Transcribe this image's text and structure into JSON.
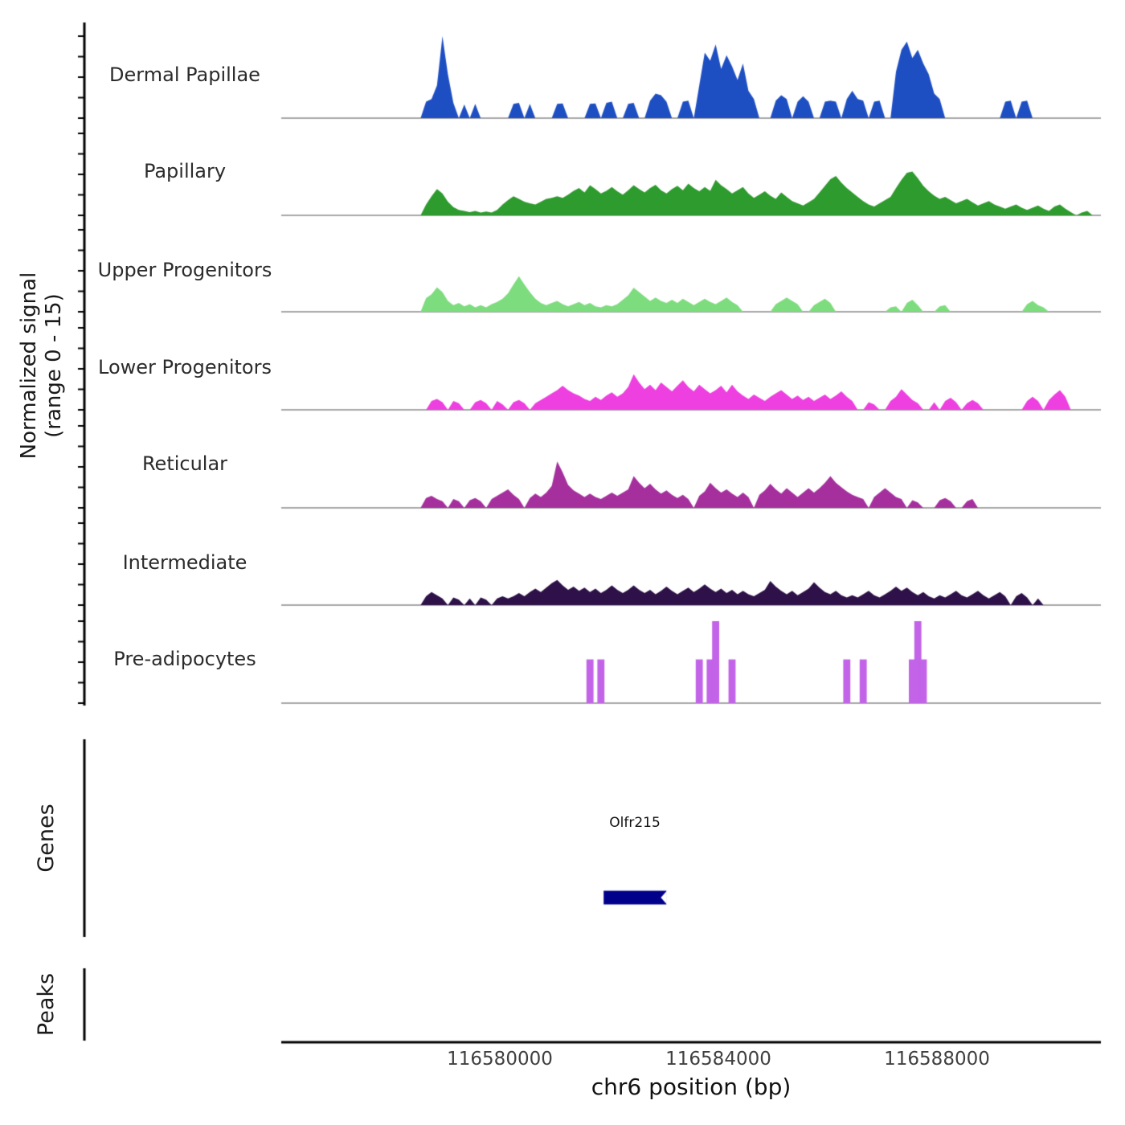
{
  "axes": {
    "y_label_line1": "Normalized signal",
    "y_label_line2": "(range 0 - 15)",
    "x_label": "chr6 position (bp)",
    "genes_section_label": "Genes",
    "peaks_section_label": "Peaks"
  },
  "chart_data": {
    "type": "area",
    "title": "",
    "ylim": [
      0,
      15
    ],
    "start_bp": 116576000,
    "bin_size_bp": 100,
    "x_axis": {
      "label": "chr6 position (bp)",
      "start_bp": 116576000,
      "end_bp": 116591000,
      "ticks": [
        116580000,
        116584000,
        116588000
      ],
      "tick_labels": [
        "116580000",
        "116584000",
        "116588000"
      ]
    },
    "baseline_color": "#8c8c8c",
    "axis_color": "#000000",
    "tracks": [
      {
        "name": "Dermal Papillae",
        "color": "#1e4fc2",
        "style": "area",
        "values": [
          0,
          0,
          0,
          0,
          0,
          0,
          0,
          0,
          0,
          0,
          0,
          0,
          0,
          0,
          0,
          0,
          0,
          0,
          0,
          0,
          0,
          0,
          0,
          0,
          0,
          0,
          3,
          3.5,
          6,
          15,
          8,
          2.8,
          0,
          2.5,
          0,
          2.6,
          0,
          0,
          0,
          0,
          0,
          0,
          2.6,
          2.8,
          0,
          2.6,
          0,
          0,
          0,
          0,
          2.6,
          2.7,
          0,
          0,
          0,
          0,
          2.6,
          2.7,
          0,
          2.8,
          3,
          0,
          0,
          2.6,
          2.8,
          0,
          0,
          3.2,
          4.5,
          4.2,
          3,
          0,
          0,
          3,
          3.2,
          0,
          6,
          12,
          10.5,
          13.5,
          9,
          11.5,
          9.5,
          7,
          10,
          5,
          3.5,
          0,
          0,
          0,
          3.2,
          4.2,
          3.5,
          0,
          3,
          4,
          3,
          0,
          0,
          3,
          3.2,
          3,
          0,
          3.5,
          5,
          3.5,
          3.2,
          0,
          3,
          3.2,
          0,
          0,
          8.5,
          12.5,
          14,
          11,
          12.5,
          10,
          8,
          4.5,
          3.5,
          0,
          0,
          0,
          0,
          0,
          0,
          0,
          0,
          0,
          0,
          0,
          3,
          3.2,
          0,
          3,
          3.2,
          0,
          0,
          0,
          0,
          0,
          0,
          0,
          0,
          0,
          0,
          0,
          0,
          0
        ]
      },
      {
        "name": "Papillary",
        "color": "#2e9b2e",
        "style": "area",
        "values": [
          0,
          0,
          0,
          0,
          0,
          0,
          0,
          0,
          0,
          0,
          0,
          0,
          0,
          0,
          0,
          0,
          0,
          0,
          0,
          0,
          0,
          0,
          0,
          0,
          0,
          0,
          2,
          3.5,
          4.8,
          4,
          2.5,
          1.5,
          1,
          0.8,
          0.6,
          0.8,
          0.5,
          0.7,
          0.5,
          1,
          2,
          2.8,
          3.5,
          3,
          2.5,
          2.2,
          2,
          2.5,
          3,
          3.2,
          3.5,
          3.2,
          3.8,
          4.5,
          5,
          4.2,
          5.5,
          4.8,
          4,
          4.5,
          5.2,
          4.4,
          3.8,
          4.6,
          5.5,
          4.8,
          4.2,
          5,
          5.6,
          4.6,
          4,
          4.8,
          5.4,
          4.6,
          5.8,
          5,
          4.4,
          5.2,
          4.5,
          6.5,
          5.5,
          4.8,
          4,
          4.6,
          5.2,
          4,
          3.2,
          3.8,
          4.4,
          3.6,
          3,
          4.2,
          3.4,
          2.6,
          2.2,
          1.8,
          2.4,
          3,
          4.2,
          5.4,
          6.6,
          7.2,
          6,
          5,
          4.2,
          3.4,
          2.6,
          2,
          1.6,
          2.2,
          2.8,
          3.4,
          5,
          6.5,
          7.8,
          8,
          6.8,
          5.4,
          4.4,
          3.6,
          3,
          3.4,
          2.8,
          2.2,
          2.6,
          3,
          2.4,
          1.8,
          2.2,
          2.6,
          2,
          1.6,
          1.2,
          1.6,
          2,
          1.4,
          1,
          1.4,
          1.8,
          1.2,
          0.8,
          1.6,
          2,
          1.2,
          0.6,
          0,
          0.5,
          0.8,
          0,
          0
        ]
      },
      {
        "name": "Upper Progenitors",
        "color": "#7ddc7d",
        "style": "area",
        "values": [
          0,
          0,
          0,
          0,
          0,
          0,
          0,
          0,
          0,
          0,
          0,
          0,
          0,
          0,
          0,
          0,
          0,
          0,
          0,
          0,
          0,
          0,
          0,
          0,
          0,
          0,
          2.5,
          3.2,
          4.5,
          3.6,
          2,
          1.2,
          1.6,
          1,
          1.4,
          0.8,
          1.2,
          0.8,
          1.4,
          1.8,
          2.4,
          3.4,
          5,
          6.5,
          5,
          3.6,
          2.4,
          1.6,
          1.2,
          1.6,
          2,
          1.4,
          1,
          1.4,
          1.8,
          1.2,
          1.6,
          1,
          0.8,
          1.2,
          1,
          1.4,
          2.2,
          3,
          4.4,
          3.6,
          2.8,
          2,
          2.6,
          2,
          1.6,
          2.2,
          1.6,
          2.4,
          1.8,
          1.2,
          1.8,
          2.4,
          1.8,
          1.4,
          2,
          2.6,
          1.8,
          1.2,
          0,
          0,
          0,
          0,
          0,
          0,
          1.4,
          2,
          2.6,
          2,
          1.4,
          0,
          0,
          1.2,
          1.8,
          2.4,
          1.6,
          0,
          0,
          0,
          0,
          0,
          0,
          0,
          0,
          0,
          0,
          0.8,
          1,
          0,
          1.6,
          2.2,
          1.2,
          0,
          0,
          0,
          1,
          1.2,
          0,
          0,
          0,
          0,
          0,
          0,
          0,
          0,
          0,
          0,
          0,
          0,
          0,
          0,
          1.4,
          2,
          1.2,
          0.8,
          0,
          0,
          0,
          0,
          0,
          0,
          0,
          0,
          0,
          0
        ]
      },
      {
        "name": "Lower Progenitors",
        "color": "#ee3fe0",
        "style": "area",
        "values": [
          0,
          0,
          0,
          0,
          0,
          0,
          0,
          0,
          0,
          0,
          0,
          0,
          0,
          0,
          0,
          0,
          0,
          0,
          0,
          0,
          0,
          0,
          0,
          0,
          0,
          0,
          0,
          1.6,
          2,
          1.4,
          0,
          1.6,
          1.2,
          0,
          0,
          1.4,
          1.8,
          1.2,
          0,
          1.6,
          1,
          0,
          1.4,
          1.8,
          1.2,
          0,
          1.2,
          1.8,
          2.4,
          3,
          3.6,
          4.4,
          3.6,
          3,
          2.6,
          2,
          1.6,
          2.4,
          1.8,
          2.6,
          3.2,
          2.4,
          3,
          4.2,
          6.5,
          5,
          3.8,
          4.6,
          3.6,
          5,
          4.2,
          3.4,
          4.4,
          5.4,
          4.2,
          3.4,
          4.6,
          3.8,
          3,
          3.6,
          4.4,
          3.2,
          4.6,
          3.4,
          2.6,
          2,
          2.8,
          2.2,
          1.6,
          2.4,
          3,
          3.6,
          2.8,
          2,
          2.6,
          1.8,
          2.4,
          1.6,
          2.2,
          2.8,
          2,
          2.6,
          3.4,
          2.4,
          1.6,
          0,
          0,
          1.4,
          1,
          0,
          0,
          1.6,
          2.4,
          3.8,
          2.8,
          1.8,
          1.2,
          0,
          0,
          1.4,
          0,
          1.6,
          2.2,
          1.4,
          0,
          1.2,
          1.8,
          1.2,
          0,
          0,
          0,
          0,
          0,
          0,
          0,
          0,
          1.6,
          2.4,
          1.6,
          0,
          1.8,
          2.8,
          3.6,
          2.4,
          0,
          0,
          0,
          0,
          0,
          0
        ]
      },
      {
        "name": "Reticular",
        "color": "#a62f9e",
        "style": "area",
        "values": [
          0,
          0,
          0,
          0,
          0,
          0,
          0,
          0,
          0,
          0,
          0,
          0,
          0,
          0,
          0,
          0,
          0,
          0,
          0,
          0,
          0,
          0,
          0,
          0,
          0,
          0,
          1.8,
          2.2,
          1.6,
          1.2,
          0,
          1.6,
          1.2,
          0,
          1.4,
          1.8,
          1.2,
          0,
          1.6,
          2.2,
          2.8,
          3.4,
          2.4,
          1.6,
          0,
          1.8,
          2.6,
          2,
          2.8,
          4,
          8.5,
          6.5,
          4.2,
          3.2,
          2.6,
          2,
          2.6,
          2,
          1.6,
          2.2,
          2.8,
          2.2,
          2.8,
          3.4,
          5.8,
          4.6,
          3.6,
          4.4,
          3.4,
          2.6,
          3.2,
          2.4,
          1.8,
          2.4,
          1.6,
          0,
          2.2,
          3,
          4.6,
          3.6,
          2.8,
          3.4,
          2.6,
          2,
          2.8,
          2,
          0,
          2.4,
          3.2,
          4.4,
          3.4,
          2.6,
          3.6,
          2.8,
          2,
          2.8,
          3.6,
          2.8,
          3.6,
          4.6,
          5.8,
          4.6,
          3.8,
          3,
          2.4,
          2,
          1.6,
          0,
          2,
          2.8,
          3.6,
          2.8,
          2,
          1.6,
          0,
          1.4,
          1,
          0,
          0,
          0,
          1.4,
          1.8,
          1.2,
          0,
          0,
          1.2,
          1.6,
          0,
          0,
          0,
          0,
          0,
          0,
          0,
          0,
          0,
          0,
          0,
          0,
          0,
          0,
          0,
          0,
          0,
          0,
          0,
          0,
          0,
          0,
          0
        ]
      },
      {
        "name": "Intermediate",
        "color": "#2e1148",
        "style": "area",
        "values": [
          0,
          0,
          0,
          0,
          0,
          0,
          0,
          0,
          0,
          0,
          0,
          0,
          0,
          0,
          0,
          0,
          0,
          0,
          0,
          0,
          0,
          0,
          0,
          0,
          0,
          0,
          1.6,
          2.4,
          1.8,
          1.2,
          0,
          1.4,
          1,
          0,
          1.2,
          0,
          1.4,
          1,
          0,
          1.2,
          1.6,
          1.2,
          1.6,
          2.2,
          1.6,
          2.4,
          3,
          2.4,
          3.2,
          4,
          4.6,
          3.6,
          2.8,
          3.4,
          2.6,
          3.2,
          2.4,
          3,
          2.2,
          2.8,
          3.6,
          2.8,
          2.2,
          2.8,
          3.6,
          2.8,
          2.2,
          2.8,
          2,
          2.6,
          3.4,
          2.6,
          2,
          2.6,
          3.2,
          2.4,
          3,
          3.8,
          3,
          2.4,
          3,
          2.2,
          2.8,
          2,
          2.6,
          2,
          1.6,
          2.2,
          2.8,
          4.4,
          3.4,
          2.6,
          2,
          2.6,
          1.8,
          2.4,
          3,
          4.2,
          3.2,
          2.4,
          2,
          2.6,
          1.8,
          1.4,
          1.8,
          1.4,
          2,
          2.6,
          1.8,
          1.4,
          2,
          2.6,
          3.4,
          2.6,
          3.2,
          2.4,
          1.8,
          2.4,
          1.6,
          1.2,
          1.8,
          1.4,
          2,
          2.6,
          1.8,
          1.4,
          2,
          2.6,
          1.8,
          1.2,
          1.8,
          2.4,
          1.6,
          0,
          1.6,
          2.2,
          1.4,
          0,
          1.2,
          0,
          0,
          0,
          0,
          0,
          0,
          0,
          0,
          0,
          0,
          0
        ]
      },
      {
        "name": "Pre-adipocytes",
        "color": "#c263e8",
        "style": "bars",
        "values": [
          0,
          0,
          0,
          0,
          0,
          0,
          0,
          0,
          0,
          0,
          0,
          0,
          0,
          0,
          0,
          0,
          0,
          0,
          0,
          0,
          0,
          0,
          0,
          0,
          0,
          0,
          0,
          0,
          0,
          0,
          0,
          0,
          0,
          0,
          0,
          0,
          0,
          0,
          0,
          0,
          0,
          0,
          0,
          0,
          0,
          0,
          0,
          0,
          0,
          0,
          0,
          0,
          0,
          0,
          0,
          0,
          8,
          0,
          8,
          0,
          0,
          0,
          0,
          0,
          0,
          0,
          0,
          0,
          0,
          0,
          0,
          0,
          0,
          0,
          0,
          0,
          8,
          0,
          8,
          15,
          0,
          0,
          8,
          0,
          0,
          0,
          0,
          0,
          0,
          0,
          0,
          0,
          0,
          0,
          0,
          0,
          0,
          0,
          0,
          0,
          0,
          0,
          0,
          8,
          0,
          0,
          8,
          0,
          0,
          0,
          0,
          0,
          0,
          0,
          0,
          8,
          15,
          8,
          0,
          0,
          0,
          0,
          0,
          0,
          0,
          0,
          0,
          0,
          0,
          0,
          0,
          0,
          0,
          0,
          0,
          0,
          0,
          0,
          0,
          0,
          0,
          0,
          0,
          0,
          0,
          0,
          0,
          0,
          0,
          0
        ]
      }
    ],
    "gene_track": {
      "label": "Genes",
      "genes": [
        {
          "name": "Olfr215",
          "start_bp": 116581900,
          "end_bp": 116583050,
          "color": "#00008b",
          "strand": "-"
        }
      ]
    },
    "peaks_track": {
      "label": "Peaks",
      "peaks": []
    }
  }
}
